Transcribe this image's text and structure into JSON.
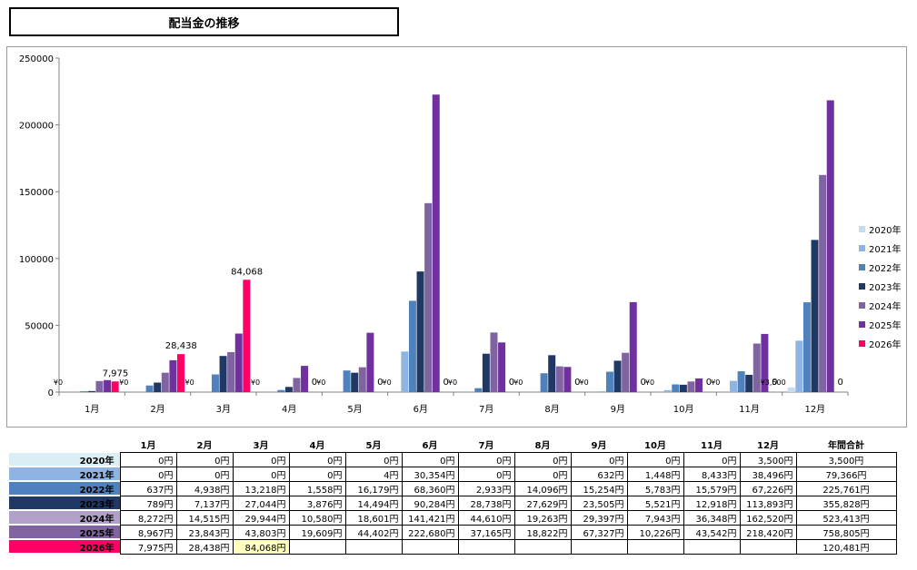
{
  "title": "配当金の推移",
  "chart_data": {
    "type": "bar",
    "categories": [
      "1月",
      "2月",
      "3月",
      "4月",
      "5月",
      "6月",
      "7月",
      "8月",
      "9月",
      "10月",
      "11月",
      "12月"
    ],
    "ylim": [
      0,
      250000
    ],
    "yticks": [
      "0",
      "50000",
      "100000",
      "150000",
      "200000",
      "250000"
    ],
    "grid": false,
    "legend_position": "right",
    "series": [
      {
        "name": "2020年",
        "color": "#c6dbf0",
        "values": [
          0,
          0,
          0,
          0,
          0,
          0,
          0,
          0,
          0,
          0,
          0,
          3500
        ]
      },
      {
        "name": "2021年",
        "color": "#8db4e3",
        "values": [
          0,
          0,
          0,
          0,
          4,
          30354,
          0,
          0,
          632,
          1448,
          8433,
          38496
        ]
      },
      {
        "name": "2022年",
        "color": "#4f81bd",
        "values": [
          637,
          4938,
          13218,
          1558,
          16179,
          68360,
          2933,
          14096,
          15254,
          5783,
          15579,
          67226
        ]
      },
      {
        "name": "2023年",
        "color": "#1f3864",
        "values": [
          789,
          7137,
          27044,
          3876,
          14494,
          90284,
          28738,
          27629,
          23505,
          5521,
          12918,
          113893
        ]
      },
      {
        "name": "2024年",
        "color": "#8064a2",
        "values": [
          8272,
          14515,
          29944,
          10580,
          18601,
          141421,
          44610,
          19263,
          29397,
          7943,
          36348,
          162520
        ]
      },
      {
        "name": "2025年",
        "color": "#7030a0",
        "values": [
          8967,
          23843,
          43803,
          19609,
          44402,
          222680,
          37165,
          18822,
          67327,
          10226,
          43542,
          218420
        ]
      },
      {
        "name": "2026年",
        "color": "#ff0066",
        "values": [
          7975,
          28438,
          84068,
          null,
          null,
          null,
          null,
          null,
          null,
          null,
          null,
          null
        ]
      }
    ],
    "data_labels": [
      {
        "category": "1月",
        "series": "2020年",
        "text": "¥0"
      },
      {
        "category": "2月",
        "series": "2020年",
        "text": "¥0"
      },
      {
        "category": "3月",
        "series": "2020年",
        "text": "¥0"
      },
      {
        "category": "4月",
        "series": "2020年",
        "text": "¥0"
      },
      {
        "category": "5月",
        "series": "2020年",
        "text": "¥0"
      },
      {
        "category": "6月",
        "series": "2020年",
        "text": "¥0"
      },
      {
        "category": "7月",
        "series": "2020年",
        "text": "¥0"
      },
      {
        "category": "8月",
        "series": "2020年",
        "text": "¥0"
      },
      {
        "category": "9月",
        "series": "2020年",
        "text": "¥0"
      },
      {
        "category": "10月",
        "series": "2020年",
        "text": "¥0"
      },
      {
        "category": "11月",
        "series": "2020年",
        "text": "¥0"
      },
      {
        "category": "12月",
        "series": "2020年",
        "text": "¥3,500"
      },
      {
        "category": "1月",
        "series": "2026年",
        "text": "7,975"
      },
      {
        "category": "2月",
        "series": "2026年",
        "text": "28,438"
      },
      {
        "category": "3月",
        "series": "2026年",
        "text": "84,068"
      },
      {
        "category": "4月",
        "series": "2026年",
        "text": "0"
      },
      {
        "category": "5月",
        "series": "2026年",
        "text": "0"
      },
      {
        "category": "6月",
        "series": "2026年",
        "text": "0"
      },
      {
        "category": "7月",
        "series": "2026年",
        "text": "0"
      },
      {
        "category": "8月",
        "series": "2026年",
        "text": "0"
      },
      {
        "category": "9月",
        "series": "2026年",
        "text": "0"
      },
      {
        "category": "10月",
        "series": "2026年",
        "text": "0"
      },
      {
        "category": "11月",
        "series": "2026年",
        "text": "0"
      },
      {
        "category": "12月",
        "series": "2026年",
        "text": "0"
      }
    ]
  },
  "table": {
    "headers": [
      "1月",
      "2月",
      "3月",
      "4月",
      "5月",
      "6月",
      "7月",
      "8月",
      "9月",
      "10月",
      "11月",
      "12月"
    ],
    "total_header": "年間合計",
    "rows": [
      {
        "year": "2020年",
        "color": "#daeef3",
        "cells": [
          "0円",
          "0円",
          "0円",
          "0円",
          "0円",
          "0円",
          "0円",
          "0円",
          "0円",
          "0円",
          "0円",
          "3,500円"
        ],
        "total": "3,500円"
      },
      {
        "year": "2021年",
        "color": "#8db4e3",
        "cells": [
          "0円",
          "0円",
          "0円",
          "0円",
          "4円",
          "30,354円",
          "0円",
          "0円",
          "632円",
          "1,448円",
          "8,433円",
          "38,496円"
        ],
        "total": "79,366円"
      },
      {
        "year": "2022年",
        "color": "#4f81bd",
        "cells": [
          "637円",
          "4,938円",
          "13,218円",
          "1,558円",
          "16,179円",
          "68,360円",
          "2,933円",
          "14,096円",
          "15,254円",
          "5,783円",
          "15,579円",
          "67,226円"
        ],
        "total": "225,761円"
      },
      {
        "year": "2023年",
        "color": "#1f3864",
        "cells": [
          "789円",
          "7,137円",
          "27,044円",
          "3,876円",
          "14,494円",
          "90,284円",
          "28,738円",
          "27,629円",
          "23,505円",
          "5,521円",
          "12,918円",
          "113,893円"
        ],
        "total": "355,828円"
      },
      {
        "year": "2024年",
        "color": "#b1a0c7",
        "cells": [
          "8,272円",
          "14,515円",
          "29,944円",
          "10,580円",
          "18,601円",
          "141,421円",
          "44,610円",
          "19,263円",
          "29,397円",
          "7,943円",
          "36,348円",
          "162,520円"
        ],
        "total": "523,413円"
      },
      {
        "year": "2025年",
        "color": "#8064a2",
        "cells": [
          "8,967円",
          "23,843円",
          "43,803円",
          "19,609円",
          "44,402円",
          "222,680円",
          "37,165円",
          "18,822円",
          "67,327円",
          "10,226円",
          "43,542円",
          "218,420円"
        ],
        "total": "758,805円"
      },
      {
        "year": "2026年",
        "color": "#ff0066",
        "cells": [
          "7,975円",
          "28,438円",
          "84,068円",
          "",
          "",
          "",
          "",
          "",
          "",
          "",
          "",
          ""
        ],
        "total": "120,481円"
      }
    ]
  }
}
